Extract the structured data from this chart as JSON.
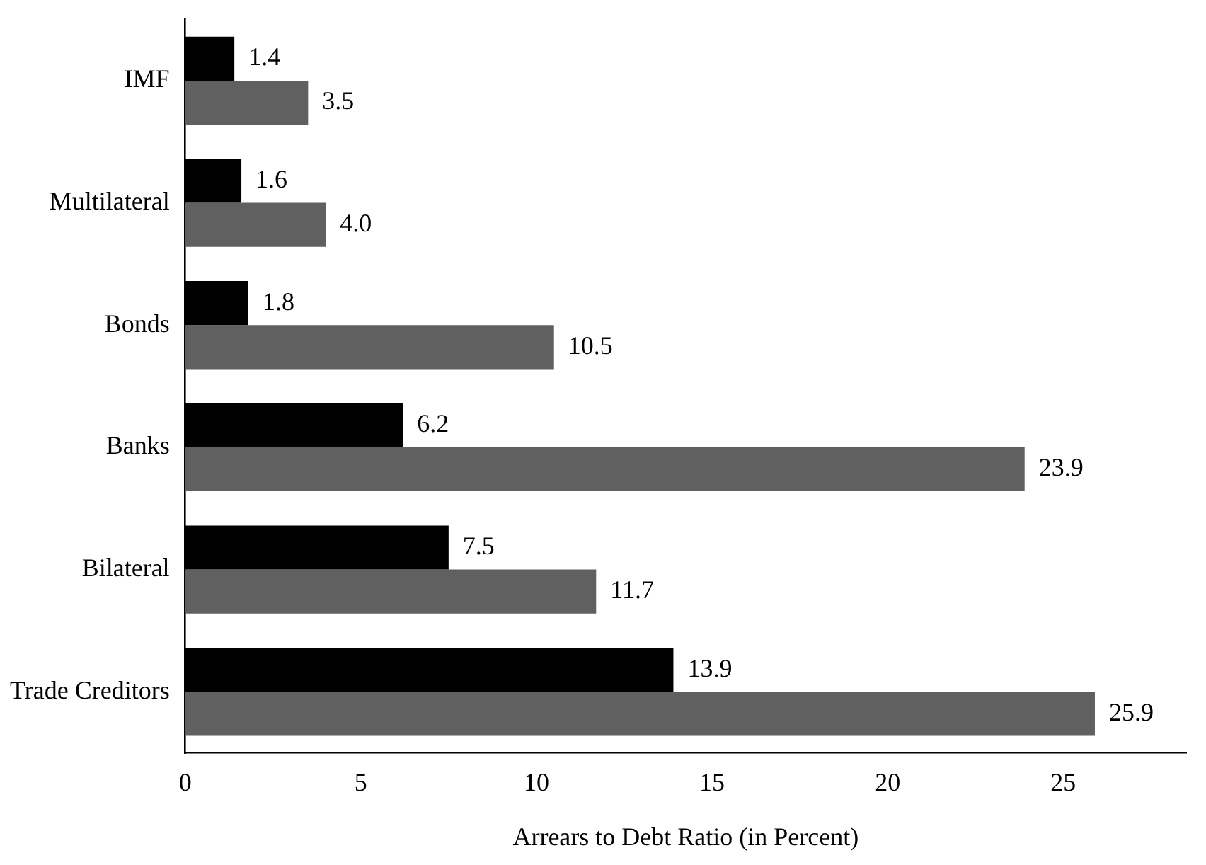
{
  "chart_data": {
    "type": "bar",
    "orientation": "horizontal",
    "xlabel": "Arrears to Debt Ratio (in Percent)",
    "categories": [
      "IMF",
      "Multilateral",
      "Bonds",
      "Banks",
      "Bilateral",
      "Trade Creditors"
    ],
    "series": [
      {
        "color": "#000000",
        "values": [
          1.4,
          1.6,
          1.8,
          6.2,
          7.5,
          13.9
        ],
        "value_labels": [
          "1.4",
          "1.6",
          "1.8",
          "6.2",
          "7.5",
          "13.9"
        ]
      },
      {
        "color": "#606060",
        "values": [
          3.5,
          4.0,
          10.5,
          23.9,
          11.7,
          25.9
        ],
        "value_labels": [
          "3.5",
          "4.0",
          "10.5",
          "23.9",
          "11.7",
          "25.9"
        ]
      }
    ],
    "xlim": [
      0,
      28.5
    ],
    "xticks": [
      0,
      5,
      10,
      15,
      20,
      25
    ],
    "grid": false,
    "legend": false
  }
}
